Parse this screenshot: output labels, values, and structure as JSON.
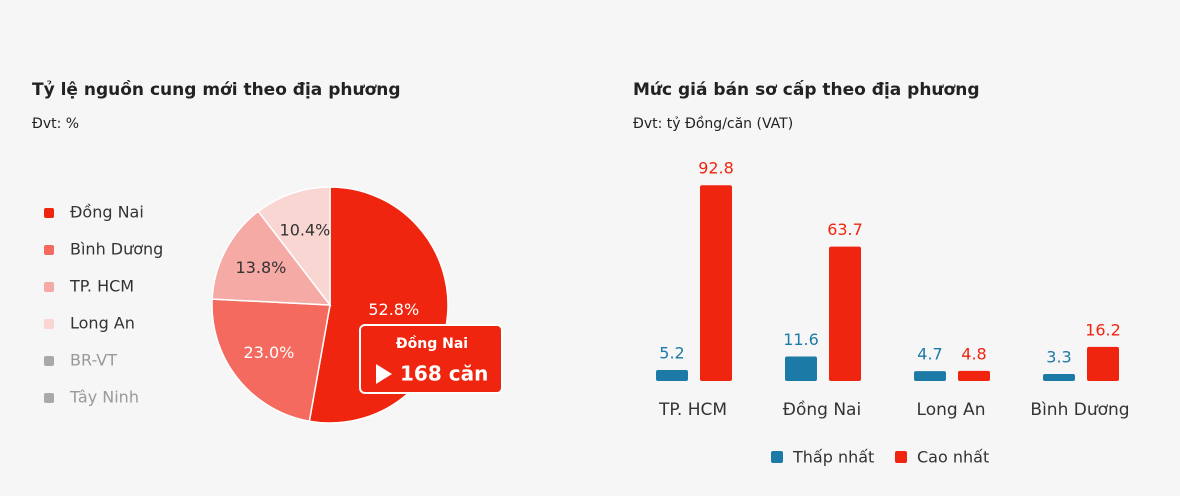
{
  "chart_data": [
    {
      "type": "pie",
      "title": "Tỷ lệ nguồn cung mới theo địa phương",
      "subtitle": "Đvt: %",
      "categories": [
        "Đồng Nai",
        "Bình Dương",
        "TP. HCM",
        "Long An",
        "BR-VT",
        "Tây Ninh"
      ],
      "values": [
        52.8,
        23.0,
        13.8,
        10.4,
        0,
        0
      ],
      "value_labels": [
        "52.8%",
        "23.0%",
        "13.8%",
        "10.4%",
        null,
        null
      ],
      "colors": [
        "#f0250f",
        "#f46a5e",
        "#f6aaa5",
        "#fad6d3",
        "#a9a9a9",
        "#a9a9a9"
      ],
      "tooltip": {
        "title": "Đồng Nai",
        "value": "168 căn"
      }
    },
    {
      "type": "bar",
      "title": "Mức giá bán sơ cấp theo địa phương",
      "subtitle": "Đvt: tỷ Đồng/căn (VAT)",
      "categories": [
        "TP. HCM",
        "Đồng Nai",
        "Long An",
        "Bình Dương"
      ],
      "series": [
        {
          "name": "Thấp nhất",
          "color": "#1c7aa6",
          "values": [
            5.2,
            11.6,
            4.7,
            3.3
          ]
        },
        {
          "name": "Cao nhất",
          "color": "#f0250f",
          "values": [
            92.8,
            63.7,
            4.8,
            16.2
          ]
        }
      ],
      "ylim": [
        0,
        100
      ]
    }
  ]
}
